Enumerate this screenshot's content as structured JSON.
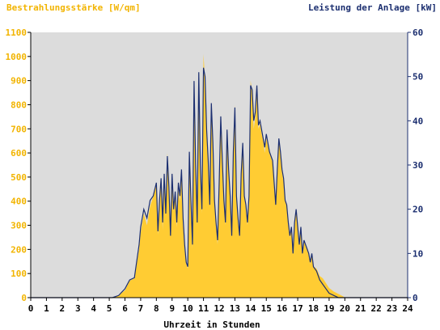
{
  "chart_data": {
    "type": "area",
    "title_left": "Bestrahlungsstärke [W/qm]",
    "title_right": "Leistung der Anlage [kW]",
    "xlabel": "Uhrzeit in Stunden",
    "xlim": [
      0,
      24
    ],
    "ylim_left": [
      0,
      1100
    ],
    "ylim_right": [
      0,
      60
    ],
    "x_ticks": [
      "0",
      "1",
      "2",
      "3",
      "4",
      "5",
      "6",
      "7",
      "8",
      "9",
      "10",
      "11",
      "12",
      "13",
      "14",
      "15",
      "16",
      "17",
      "18",
      "19",
      "20",
      "21",
      "22",
      "23",
      "24"
    ],
    "y_left_ticks": [
      "0",
      "100",
      "200",
      "300",
      "400",
      "500",
      "600",
      "700",
      "800",
      "900",
      "1000",
      "1100"
    ],
    "y_right_ticks": [
      "0",
      "10",
      "20",
      "30",
      "40",
      "50",
      "60"
    ],
    "grid": false,
    "series": [
      {
        "name": "Bestrahlungsstärke [W/qm]",
        "axis": "left",
        "x": [
          0,
          5.0,
          5.5,
          6.0,
          6.3,
          6.6,
          6.9,
          7.0,
          7.2,
          7.4,
          7.6,
          7.8,
          8.0,
          8.1,
          8.2,
          8.3,
          8.4,
          8.5,
          8.6,
          8.7,
          8.8,
          8.9,
          9.0,
          9.1,
          9.2,
          9.3,
          9.4,
          9.5,
          9.6,
          9.7,
          9.8,
          9.9,
          10.0,
          10.1,
          10.2,
          10.3,
          10.4,
          10.5,
          10.6,
          10.7,
          10.8,
          10.9,
          11.0,
          11.1,
          11.2,
          11.3,
          11.4,
          11.5,
          11.6,
          11.7,
          11.8,
          11.9,
          12.0,
          12.1,
          12.2,
          12.3,
          12.4,
          12.5,
          12.6,
          12.7,
          12.8,
          12.9,
          13.0,
          13.1,
          13.2,
          13.3,
          13.4,
          13.5,
          13.6,
          13.7,
          13.8,
          13.9,
          14.0,
          14.1,
          14.2,
          14.3,
          14.4,
          14.5,
          14.6,
          14.7,
          14.8,
          14.9,
          15.0,
          15.2,
          15.4,
          15.6,
          15.7,
          15.8,
          15.9,
          16.0,
          16.1,
          16.2,
          16.3,
          16.4,
          16.5,
          16.6,
          16.7,
          16.8,
          16.9,
          17.0,
          17.1,
          17.2,
          17.3,
          17.4,
          17.5,
          17.6,
          17.7,
          17.8,
          17.9,
          18.0,
          18.2,
          18.4,
          18.6,
          18.8,
          19.0,
          19.3,
          19.6,
          19.9,
          20.0,
          24
        ],
        "values": [
          0,
          0,
          5,
          30,
          70,
          80,
          200,
          270,
          350,
          300,
          380,
          420,
          470,
          260,
          400,
          480,
          280,
          520,
          340,
          600,
          450,
          250,
          510,
          360,
          420,
          290,
          450,
          400,
          500,
          300,
          200,
          140,
          120,
          600,
          380,
          200,
          850,
          520,
          300,
          900,
          520,
          350,
          1010,
          900,
          680,
          560,
          380,
          800,
          640,
          400,
          300,
          220,
          450,
          740,
          560,
          400,
          300,
          700,
          520,
          420,
          250,
          600,
          800,
          420,
          330,
          250,
          520,
          640,
          420,
          380,
          300,
          420,
          900,
          850,
          700,
          750,
          880,
          700,
          720,
          680,
          650,
          600,
          660,
          600,
          560,
          380,
          520,
          650,
          600,
          520,
          480,
          400,
          380,
          300,
          250,
          280,
          180,
          300,
          360,
          280,
          220,
          280,
          180,
          240,
          220,
          200,
          180,
          140,
          180,
          130,
          120,
          90,
          80,
          60,
          40,
          25,
          15,
          5,
          0,
          0
        ]
      },
      {
        "name": "Leistung der Anlage [kW]",
        "axis": "right",
        "x": [
          0,
          5.2,
          5.6,
          6.0,
          6.3,
          6.6,
          6.9,
          7.0,
          7.2,
          7.4,
          7.6,
          7.8,
          8.0,
          8.1,
          8.2,
          8.3,
          8.4,
          8.5,
          8.6,
          8.7,
          8.8,
          8.9,
          9.0,
          9.1,
          9.2,
          9.3,
          9.4,
          9.5,
          9.6,
          9.7,
          9.8,
          9.9,
          10.0,
          10.1,
          10.2,
          10.3,
          10.4,
          10.5,
          10.6,
          10.7,
          10.8,
          10.9,
          11.0,
          11.1,
          11.2,
          11.3,
          11.4,
          11.5,
          11.6,
          11.7,
          11.8,
          11.9,
          12.0,
          12.1,
          12.2,
          12.3,
          12.4,
          12.5,
          12.6,
          12.7,
          12.8,
          12.9,
          13.0,
          13.1,
          13.2,
          13.3,
          13.4,
          13.5,
          13.6,
          13.7,
          13.8,
          13.9,
          14.0,
          14.1,
          14.2,
          14.3,
          14.4,
          14.5,
          14.6,
          14.7,
          14.8,
          14.9,
          15.0,
          15.2,
          15.4,
          15.6,
          15.7,
          15.8,
          15.9,
          16.0,
          16.1,
          16.2,
          16.3,
          16.4,
          16.5,
          16.6,
          16.7,
          16.8,
          16.9,
          17.0,
          17.1,
          17.2,
          17.3,
          17.4,
          17.5,
          17.6,
          17.7,
          17.8,
          17.9,
          18.0,
          18.2,
          18.4,
          18.6,
          18.8,
          19.0,
          19.3,
          19.6,
          19.9,
          20.0,
          24
        ],
        "values": [
          0,
          0,
          0.5,
          2,
          4,
          4.5,
          12,
          16,
          20,
          18,
          22,
          23,
          26,
          15,
          22,
          27,
          17,
          28,
          19,
          32,
          25,
          14,
          28,
          20,
          24,
          17,
          26,
          23,
          29,
          18,
          12,
          8,
          7,
          33,
          22,
          12,
          49,
          30,
          17,
          51,
          30,
          20,
          52,
          50,
          38,
          31,
          21,
          44,
          35,
          22,
          17,
          13,
          26,
          41,
          31,
          22,
          17,
          38,
          29,
          23,
          14,
          33,
          43,
          23,
          18,
          14,
          28,
          35,
          23,
          21,
          17,
          23,
          48,
          47,
          40,
          42,
          48,
          39,
          40,
          38,
          36,
          34,
          37,
          33,
          31,
          21,
          29,
          36,
          33,
          29,
          27,
          22,
          21,
          17,
          14,
          16,
          10,
          17,
          20,
          16,
          12,
          16,
          10,
          13,
          12,
          11,
          10,
          8,
          10,
          7,
          6,
          4,
          3,
          2,
          1,
          0.5,
          0,
          0,
          0,
          0
        ]
      }
    ],
    "colors": {
      "plot_bg": "#dcdcdc",
      "irradiance_fill": "#ffcc33",
      "irradiance_text": "#f2b400",
      "power_line": "#1c2f70",
      "axis": "#000000"
    }
  }
}
